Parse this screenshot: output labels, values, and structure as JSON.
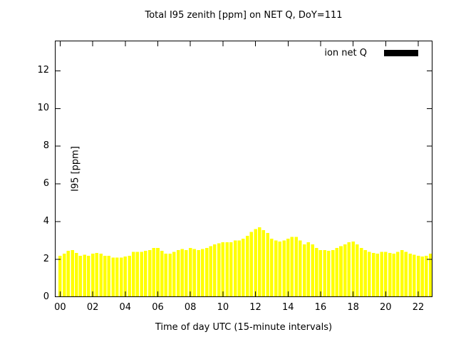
{
  "chart_data": {
    "type": "bar",
    "title": "Total I95 zenith [ppm] on NET Q, DoY=111",
    "xlabel": "Time of day UTC (15-minute intervals)",
    "ylabel": "I95 [ppm]",
    "legend": "ion net Q",
    "bar_color": "#ffff00",
    "legend_swatch_color": "#000000",
    "interval_minutes": 15,
    "x_start_hour": 0,
    "xlim": [
      -0.2,
      23.0
    ],
    "ylim": [
      0,
      13.6
    ],
    "ytick_values": [
      0,
      2,
      4,
      6,
      8,
      10,
      12
    ],
    "ytick_labels": [
      "0",
      "2",
      "4",
      "6",
      "8",
      "10",
      "12"
    ],
    "xtick_hours": [
      0,
      2,
      4,
      6,
      8,
      10,
      12,
      14,
      16,
      18,
      20,
      22
    ],
    "xtick_labels": [
      "00",
      "02",
      "04",
      "06",
      "08",
      "10",
      "12",
      "14",
      "16",
      "18",
      "20",
      "22"
    ],
    "values": [
      2.2,
      2.3,
      2.45,
      2.5,
      2.35,
      2.2,
      2.25,
      2.2,
      2.3,
      2.35,
      2.3,
      2.2,
      2.2,
      2.1,
      2.1,
      2.1,
      2.15,
      2.2,
      2.4,
      2.4,
      2.4,
      2.45,
      2.5,
      2.6,
      2.6,
      2.45,
      2.3,
      2.3,
      2.4,
      2.5,
      2.55,
      2.5,
      2.6,
      2.55,
      2.5,
      2.55,
      2.6,
      2.7,
      2.8,
      2.85,
      2.9,
      2.9,
      2.9,
      3.0,
      3.0,
      3.1,
      3.25,
      3.45,
      3.6,
      3.7,
      3.55,
      3.4,
      3.1,
      3.0,
      2.95,
      3.0,
      3.1,
      3.2,
      3.2,
      3.0,
      2.8,
      2.9,
      2.8,
      2.6,
      2.5,
      2.5,
      2.45,
      2.5,
      2.6,
      2.7,
      2.8,
      2.9,
      2.95,
      2.8,
      2.6,
      2.5,
      2.4,
      2.35,
      2.3,
      2.4,
      2.4,
      2.35,
      2.3,
      2.4,
      2.5,
      2.4,
      2.3,
      2.25,
      2.2,
      2.15,
      2.2,
      2.3
    ]
  }
}
